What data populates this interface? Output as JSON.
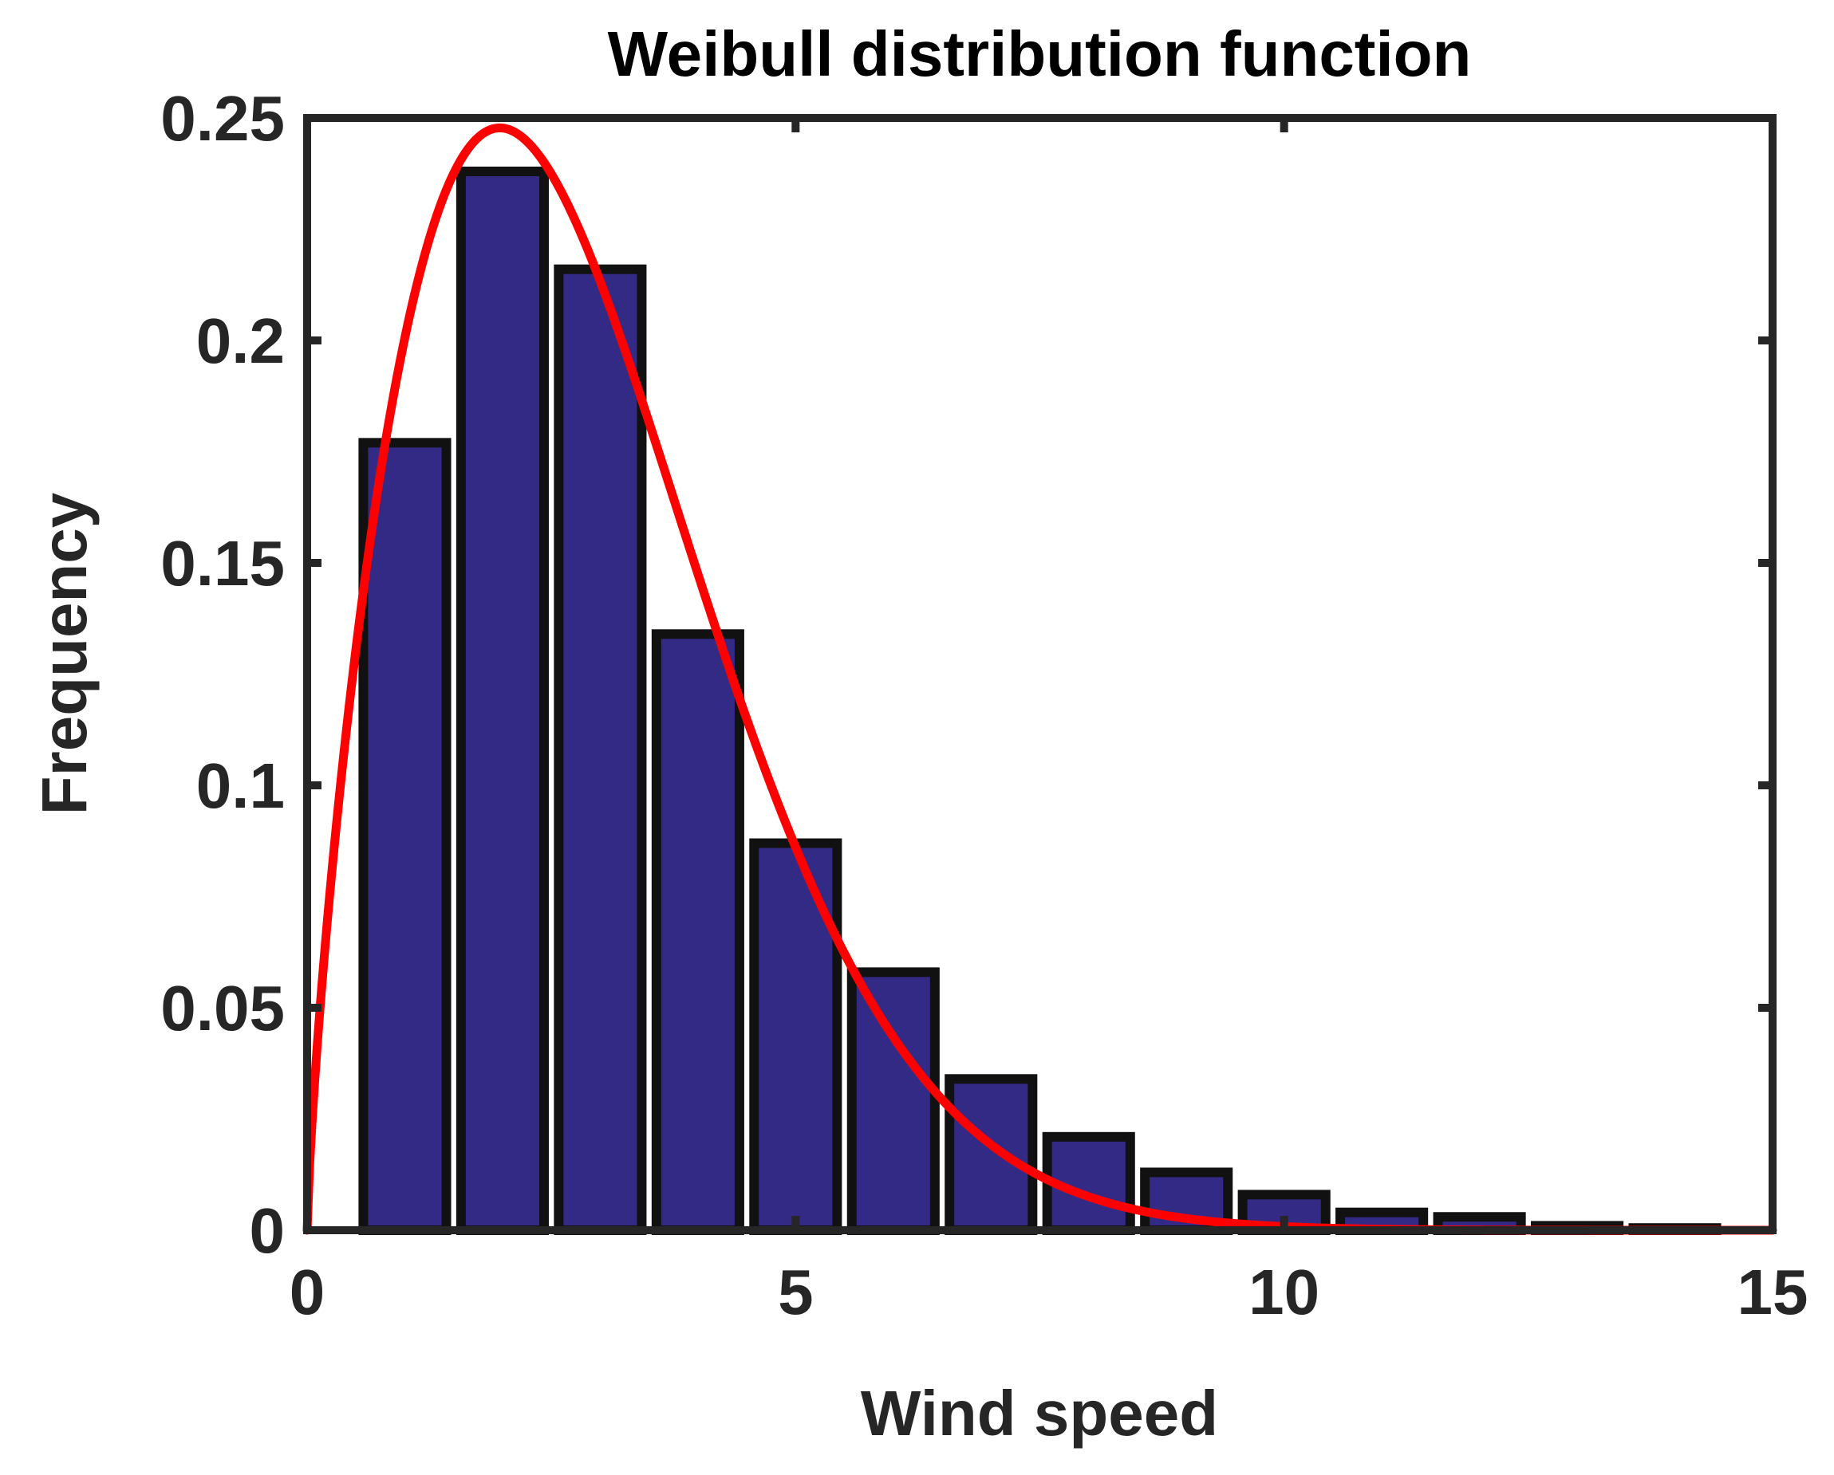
{
  "chart_data": {
    "type": "bar",
    "title": "Weibull distribution function",
    "xlabel": "Wind speed",
    "ylabel": "Frequency",
    "xlim": [
      0,
      15
    ],
    "ylim": [
      0,
      0.25
    ],
    "x_ticks": [
      0,
      5,
      10,
      15
    ],
    "x_tick_labels": [
      "0",
      "5",
      "10",
      "15"
    ],
    "y_ticks": [
      0,
      0.05,
      0.1,
      0.15,
      0.2,
      0.25
    ],
    "y_tick_labels": [
      "0",
      "0.05",
      "0.1",
      "0.15",
      "0.2",
      "0.25"
    ],
    "grid": false,
    "series": [
      {
        "kind": "bar",
        "color": "#332a86",
        "edge_color": "#111111",
        "bar_width": 0.85,
        "x": [
          1,
          2,
          3,
          4,
          5,
          6,
          7,
          8,
          9,
          10,
          11,
          12,
          13,
          14
        ],
        "values": [
          0.177,
          0.238,
          0.216,
          0.134,
          0.087,
          0.058,
          0.034,
          0.021,
          0.013,
          0.008,
          0.004,
          0.003,
          0.001,
          0.0005
        ]
      },
      {
        "kind": "line",
        "color": "#ff0000",
        "curve": "weibull_pdf",
        "shape_k": 1.75,
        "scale_lambda": 3.2
      }
    ]
  }
}
